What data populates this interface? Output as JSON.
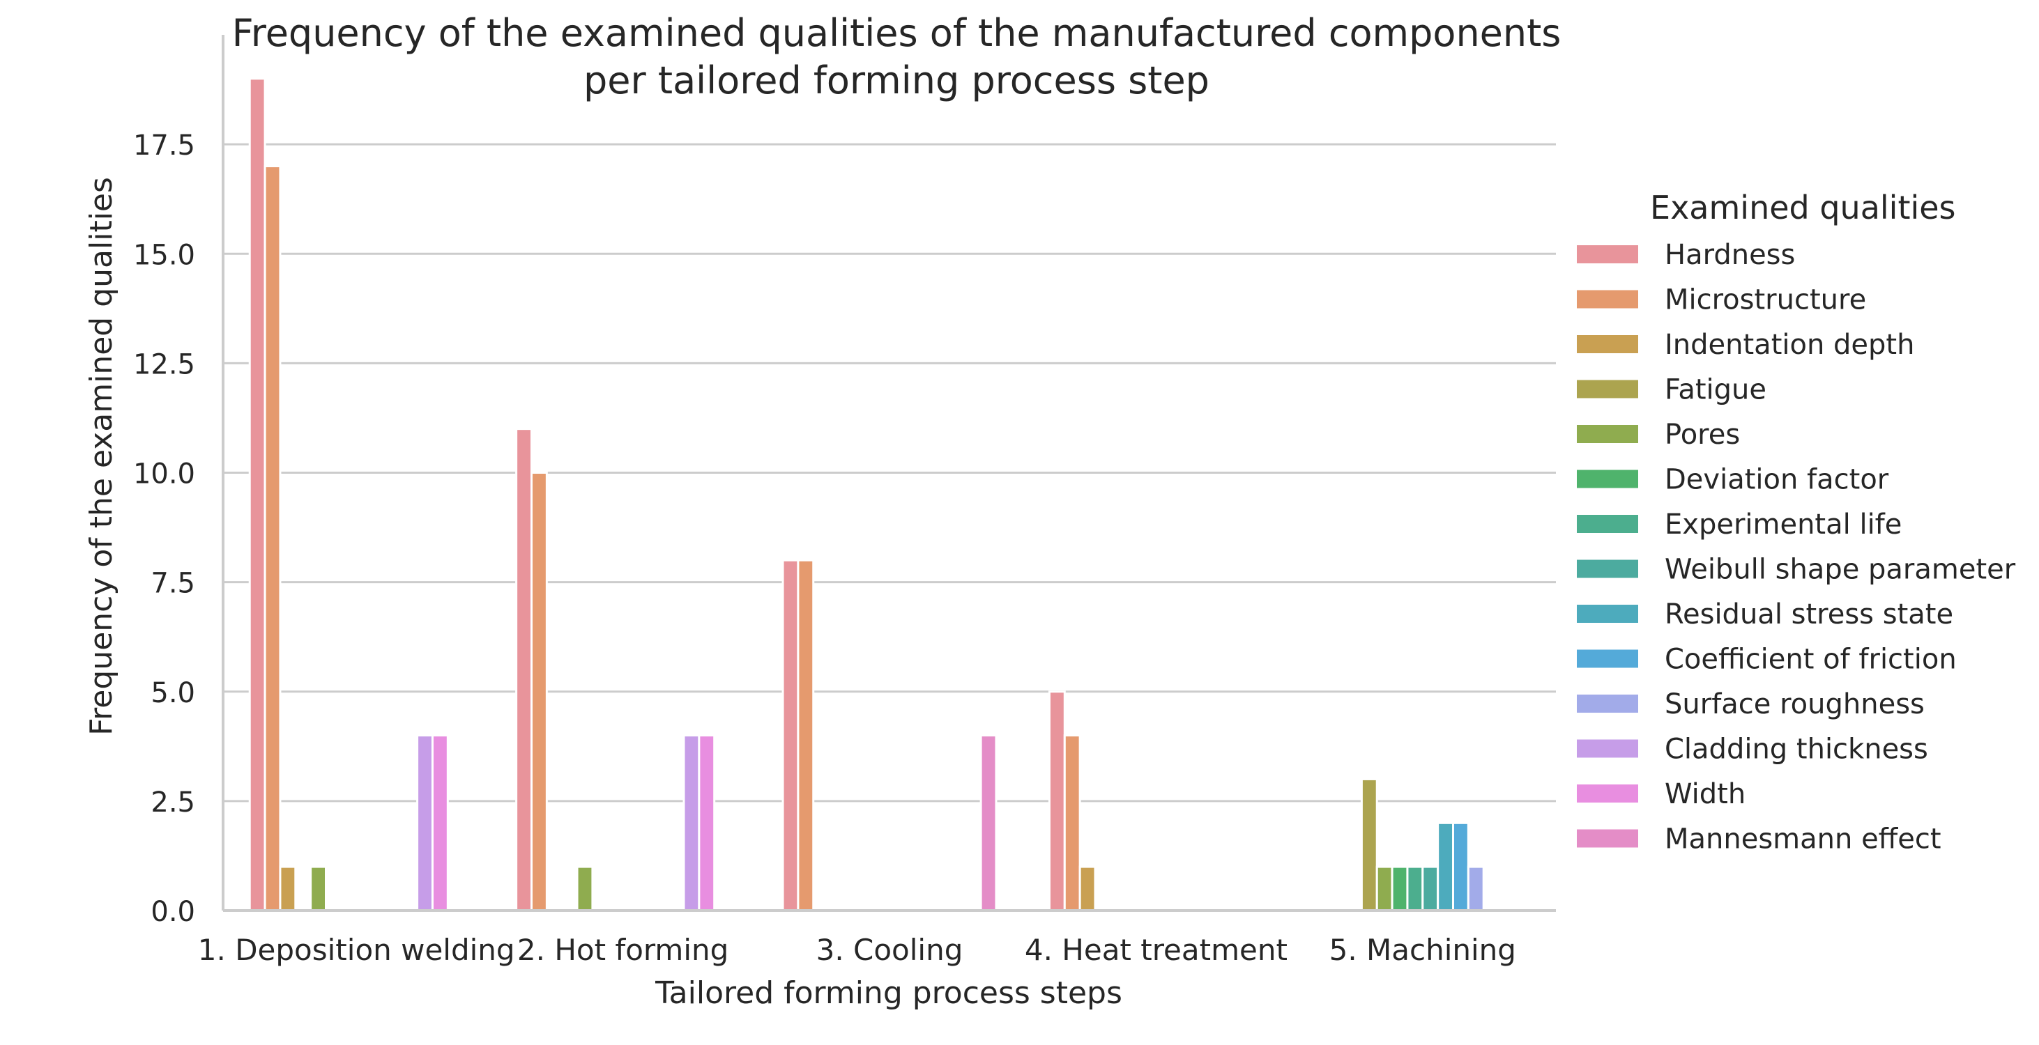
{
  "chart_data": {
    "type": "bar",
    "title_lines": [
      "Frequency of the examined qualities of the manufactured components",
      "per tailored forming process step"
    ],
    "xlabel": "Tailored forming process steps",
    "ylabel": "Frequency of the examined qualities",
    "ylim": [
      0,
      20
    ],
    "yticks": [
      0.0,
      2.5,
      5.0,
      7.5,
      10.0,
      12.5,
      15.0,
      17.5
    ],
    "ytick_labels": [
      "0.0",
      "2.5",
      "5.0",
      "7.5",
      "10.0",
      "12.5",
      "15.0",
      "17.5"
    ],
    "grid": "horizontal",
    "legend_title": "Examined qualities",
    "legend_position": "right",
    "categories": [
      "1. Deposition welding",
      "2. Hot forming",
      "3. Cooling",
      "4. Heat treatment",
      "5. Machining"
    ],
    "series": [
      {
        "name": "Hardness",
        "color": "#e8949b",
        "values": [
          19,
          11,
          8,
          5,
          0
        ]
      },
      {
        "name": "Microstructure",
        "color": "#e59a6e",
        "values": [
          17,
          10,
          8,
          4,
          0
        ]
      },
      {
        "name": "Indentation depth",
        "color": "#c9a052",
        "values": [
          1,
          0,
          0,
          1,
          0
        ]
      },
      {
        "name": "Fatigue",
        "color": "#aca44f",
        "values": [
          0,
          0,
          0,
          0,
          3
        ]
      },
      {
        "name": "Pores",
        "color": "#8fac4f",
        "values": [
          1,
          1,
          0,
          0,
          1
        ]
      },
      {
        "name": "Deviation factor",
        "color": "#4fb36c",
        "values": [
          0,
          0,
          0,
          0,
          1
        ]
      },
      {
        "name": "Experimental life",
        "color": "#4cae8e",
        "values": [
          0,
          0,
          0,
          0,
          1
        ]
      },
      {
        "name": "Weibull shape parameter",
        "color": "#4cab9f",
        "values": [
          0,
          0,
          0,
          0,
          1
        ]
      },
      {
        "name": "Residual stress state",
        "color": "#4dabbd",
        "values": [
          0,
          0,
          0,
          0,
          2
        ]
      },
      {
        "name": "Coefficient of friction",
        "color": "#54aad9",
        "values": [
          0,
          0,
          0,
          0,
          2
        ]
      },
      {
        "name": "Surface roughness",
        "color": "#a2abe9",
        "values": [
          0,
          0,
          0,
          0,
          1
        ]
      },
      {
        "name": "Cladding thickness",
        "color": "#c69de8",
        "values": [
          4,
          4,
          0,
          0,
          0
        ]
      },
      {
        "name": "Width",
        "color": "#e88ee0",
        "values": [
          4,
          4,
          0,
          0,
          0
        ]
      },
      {
        "name": "Mannesmann effect",
        "color": "#e48dc7",
        "values": [
          0,
          0,
          4,
          0,
          0
        ]
      }
    ]
  }
}
